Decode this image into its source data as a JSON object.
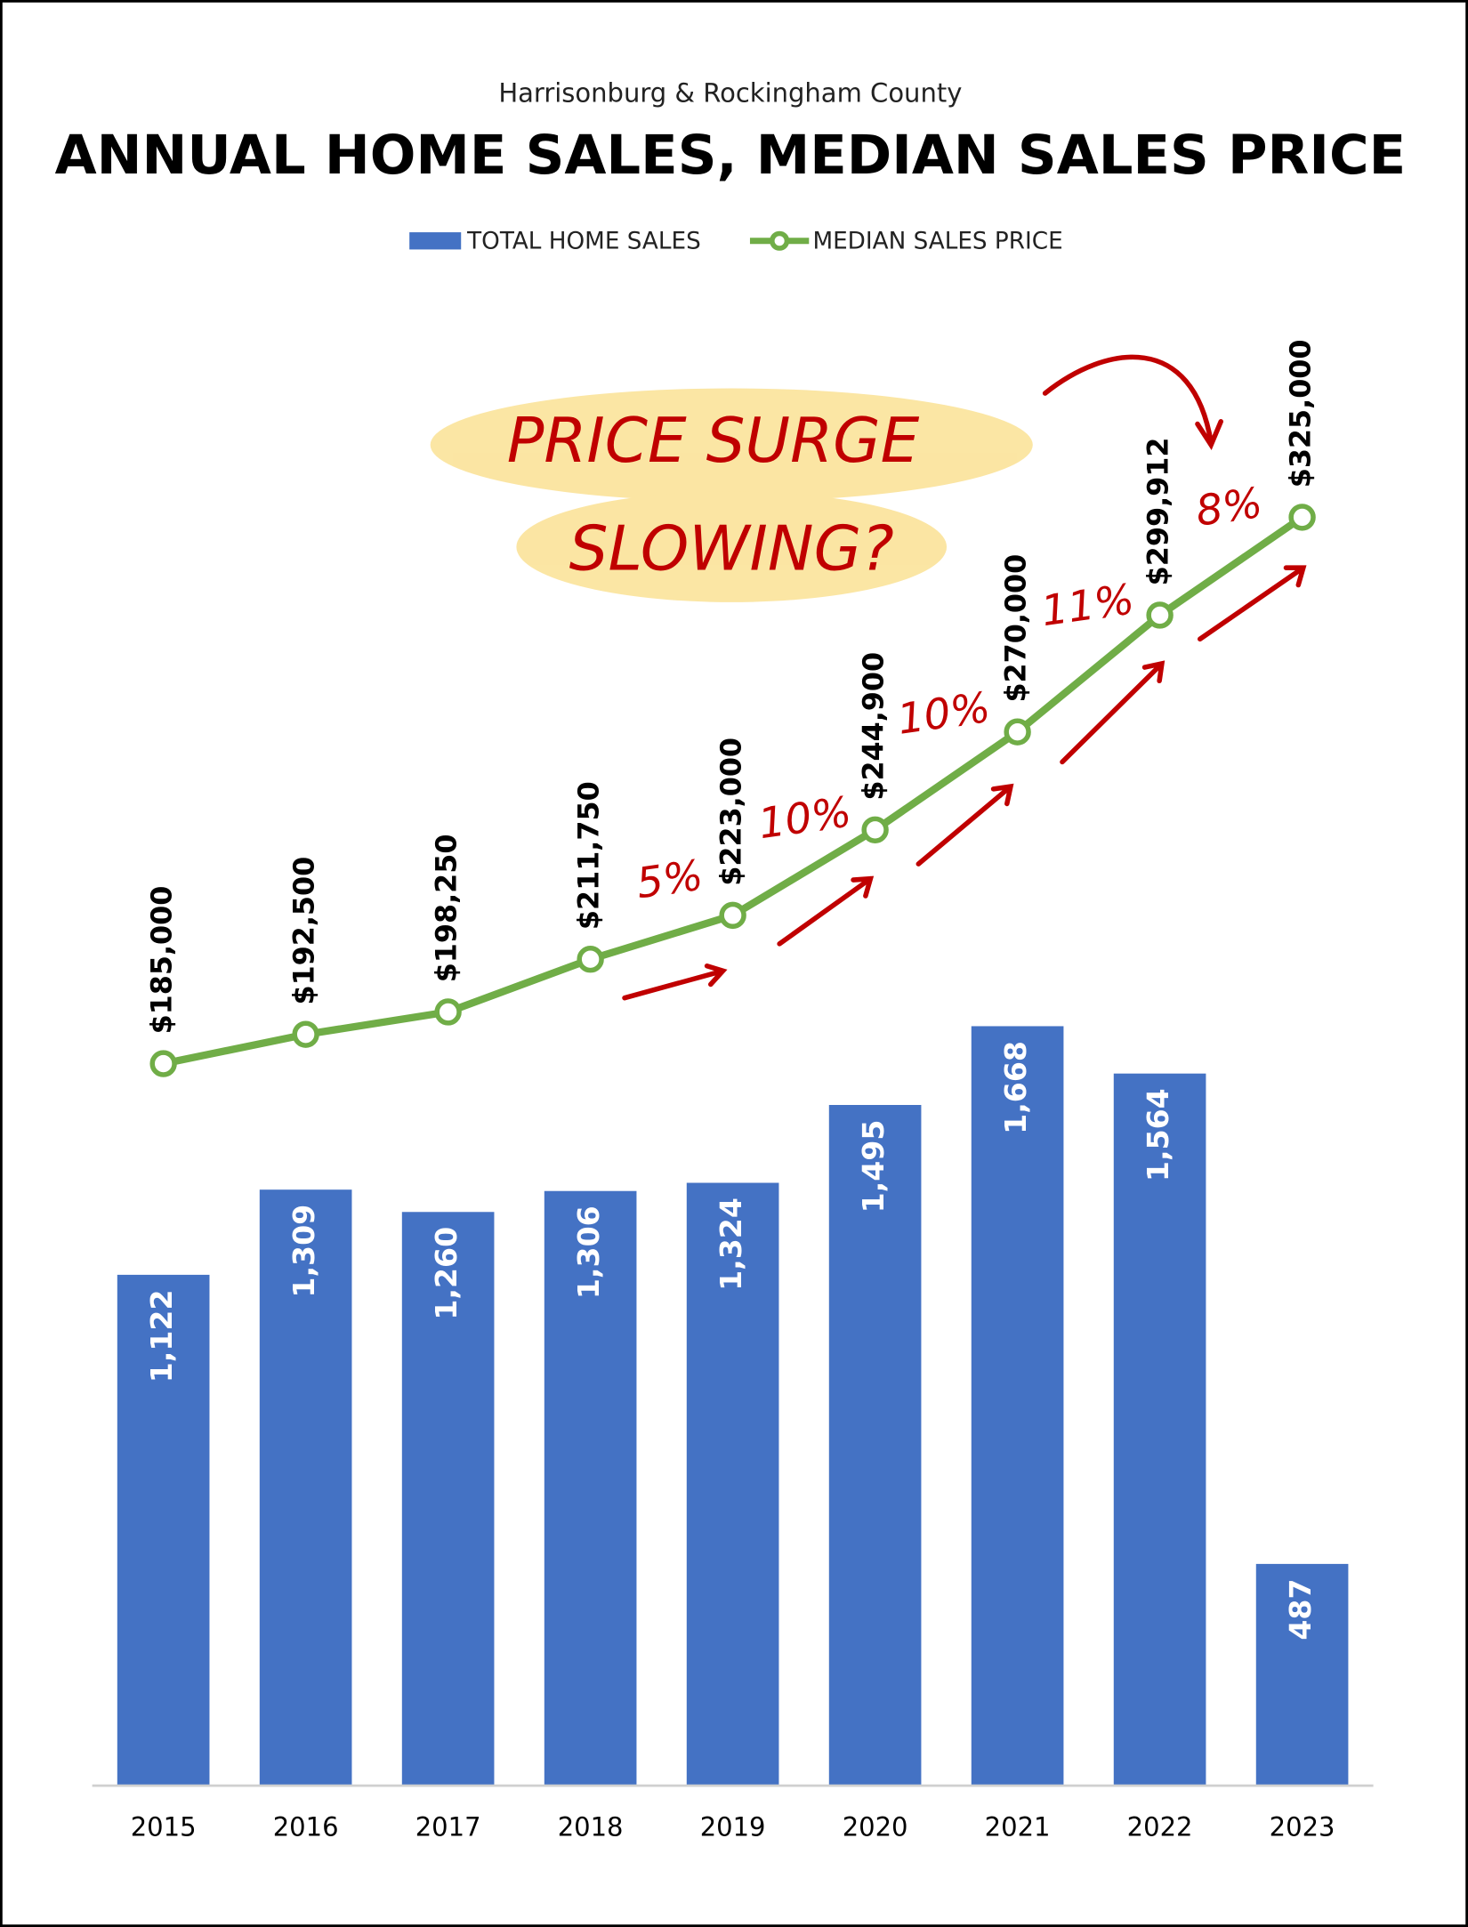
{
  "chart_data": {
    "type": "bar+line",
    "subtitle": "Harrisonburg & Rockingham County",
    "title": "ANNUAL HOME SALES, MEDIAN SALES PRICE",
    "categories": [
      "2015",
      "2016",
      "2017",
      "2018",
      "2019",
      "2020",
      "2021",
      "2022",
      "2023"
    ],
    "series": [
      {
        "name": "TOTAL HOME SALES",
        "color": "#4472c4",
        "values": [
          1122,
          1309,
          1260,
          1306,
          1324,
          1495,
          1668,
          1564,
          487
        ],
        "value_labels": [
          "1,122",
          "1,309",
          "1,260",
          "1,306",
          "1,324",
          "1,495",
          "1,668",
          "1,564",
          "487"
        ]
      },
      {
        "name": "MEDIAN SALES PRICE",
        "color": "#70ad47",
        "axis": "y2",
        "values": [
          185000,
          192500,
          198250,
          211750,
          223000,
          244900,
          270000,
          299912,
          325000
        ],
        "value_labels": [
          "$185,000",
          "$192,500",
          "$198,250",
          "$211,750",
          "$223,000",
          "$244,900",
          "$270,000",
          "$299,912",
          "$325,000"
        ]
      }
    ],
    "ylim": [
      0,
      3000
    ],
    "y2lim": [
      0,
      350000
    ],
    "legend": "top",
    "annotations": [
      "PRICE SURGE",
      "SLOWING?",
      "5%",
      "10%",
      "10%",
      "11%",
      "8%"
    ]
  }
}
